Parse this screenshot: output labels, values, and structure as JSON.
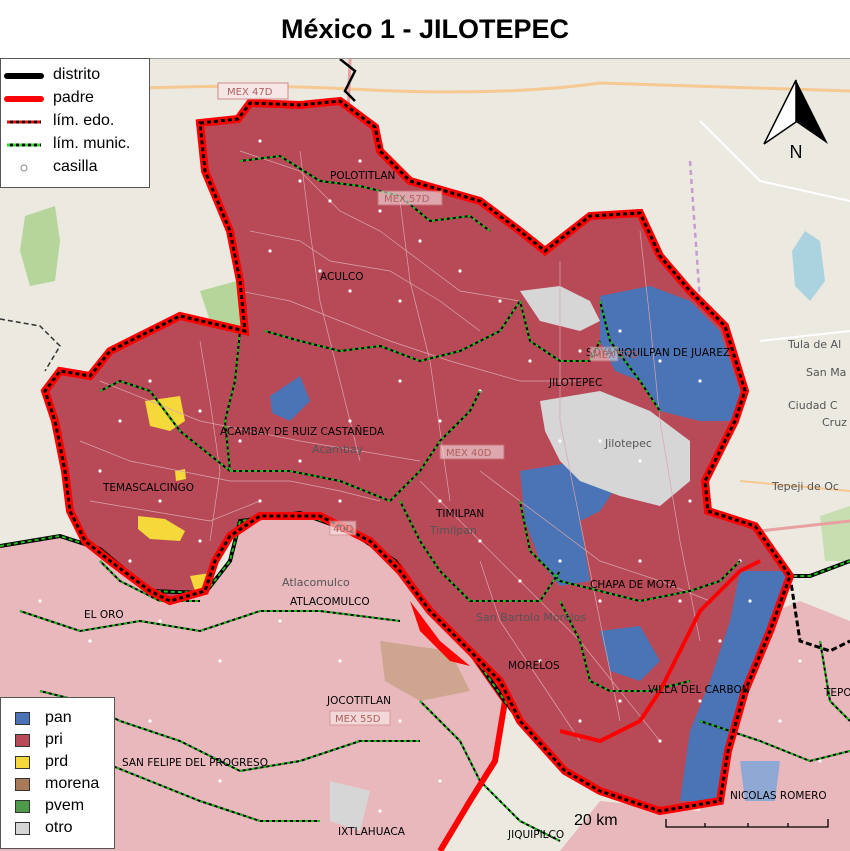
{
  "title": "México 1 - JILOTEPEC",
  "legend_lines": [
    {
      "label": "distrito"
    },
    {
      "label": "padre"
    },
    {
      "label": "lím. edo."
    },
    {
      "label": "lím. munic."
    },
    {
      "label": "casilla"
    }
  ],
  "legend_parties": [
    {
      "label": "pan",
      "color": "#4a74b5"
    },
    {
      "label": "pri",
      "color": "#b84a58"
    },
    {
      "label": "prd",
      "color": "#f5d83a"
    },
    {
      "label": "morena",
      "color": "#a87a5a"
    },
    {
      "label": "pvem",
      "color": "#4f9a4a"
    },
    {
      "label": "otro",
      "color": "#d6d6d6"
    }
  ],
  "colors": {
    "basemap": "#ece9e1",
    "district": "#000000",
    "parent": "#ff0000",
    "muni_line": "#22bb22",
    "outside_district": "#e8b8bc"
  },
  "municipalities": [
    "POLOTITLAN",
    "ACULCO",
    "SOYANIQUILPAN DE JUAREZ",
    "JILOTEPEC",
    "ACAMBAY DE RUIZ CASTAÑEDA",
    "TEMASCALCINGO",
    "TIMILPAN",
    "CHAPA DE MOTA",
    "ATLACOMULCO",
    "EL ORO",
    "MORELOS",
    "VILLA DEL CARBON",
    "JOCOTITLAN",
    "SAN FELIPE DEL PROGRESO",
    "NICOLAS ROMERO",
    "IXTLAHUACA",
    "JIQUIPILCO",
    "TEPO"
  ],
  "cities": [
    "Tula de Al",
    "San Ma",
    "Ciudad C",
    "Cruz",
    "Tepeji de Oc",
    "Acambay",
    "Atlacomulco",
    "Timilpan",
    "San Bartolo Morelos",
    "Jilotepec"
  ],
  "roads": [
    "MEX 47D",
    "MEX 57D",
    "MEX 57D",
    "MEX 40D",
    "MEX 55D",
    "40D"
  ],
  "scale": {
    "label": "20 km"
  },
  "north_label": "N"
}
